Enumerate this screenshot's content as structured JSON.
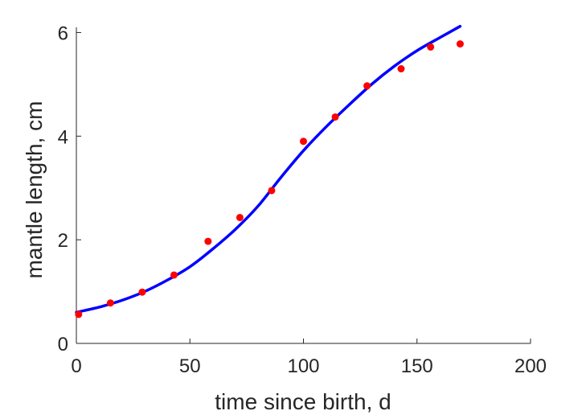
{
  "chart_data": {
    "type": "scatter",
    "title": "",
    "xlabel": "time since birth, d",
    "ylabel": "mantle length, cm",
    "xlim": [
      0,
      200
    ],
    "ylim": [
      0,
      6.1
    ],
    "xticks": [
      0,
      50,
      100,
      150,
      200
    ],
    "xtick_labels": [
      "0",
      "50",
      "100",
      "150",
      "200"
    ],
    "yticks": [
      0,
      2,
      4,
      6
    ],
    "ytick_labels": [
      "0",
      "2",
      "4",
      "6"
    ],
    "grid": false,
    "legend": "none",
    "series": [
      {
        "kind": "points",
        "color": "#ff0000",
        "x": [
          1,
          15,
          29,
          43,
          58,
          72,
          86,
          100,
          114,
          128,
          143,
          156,
          169
        ],
        "y": [
          0.56,
          0.78,
          0.99,
          1.32,
          1.97,
          2.43,
          2.95,
          3.9,
          4.37,
          4.97,
          5.3,
          5.72,
          5.78
        ]
      },
      {
        "kind": "line",
        "color": "#0000ff",
        "x": [
          0,
          10,
          20,
          30,
          40,
          50,
          60,
          70,
          80,
          90,
          100,
          110,
          120,
          130,
          140,
          150,
          160,
          169
        ],
        "y": [
          0.6,
          0.7,
          0.83,
          1.0,
          1.22,
          1.48,
          1.82,
          2.2,
          2.65,
          3.2,
          3.72,
          4.18,
          4.6,
          5.0,
          5.35,
          5.65,
          5.9,
          6.12
        ]
      }
    ]
  }
}
